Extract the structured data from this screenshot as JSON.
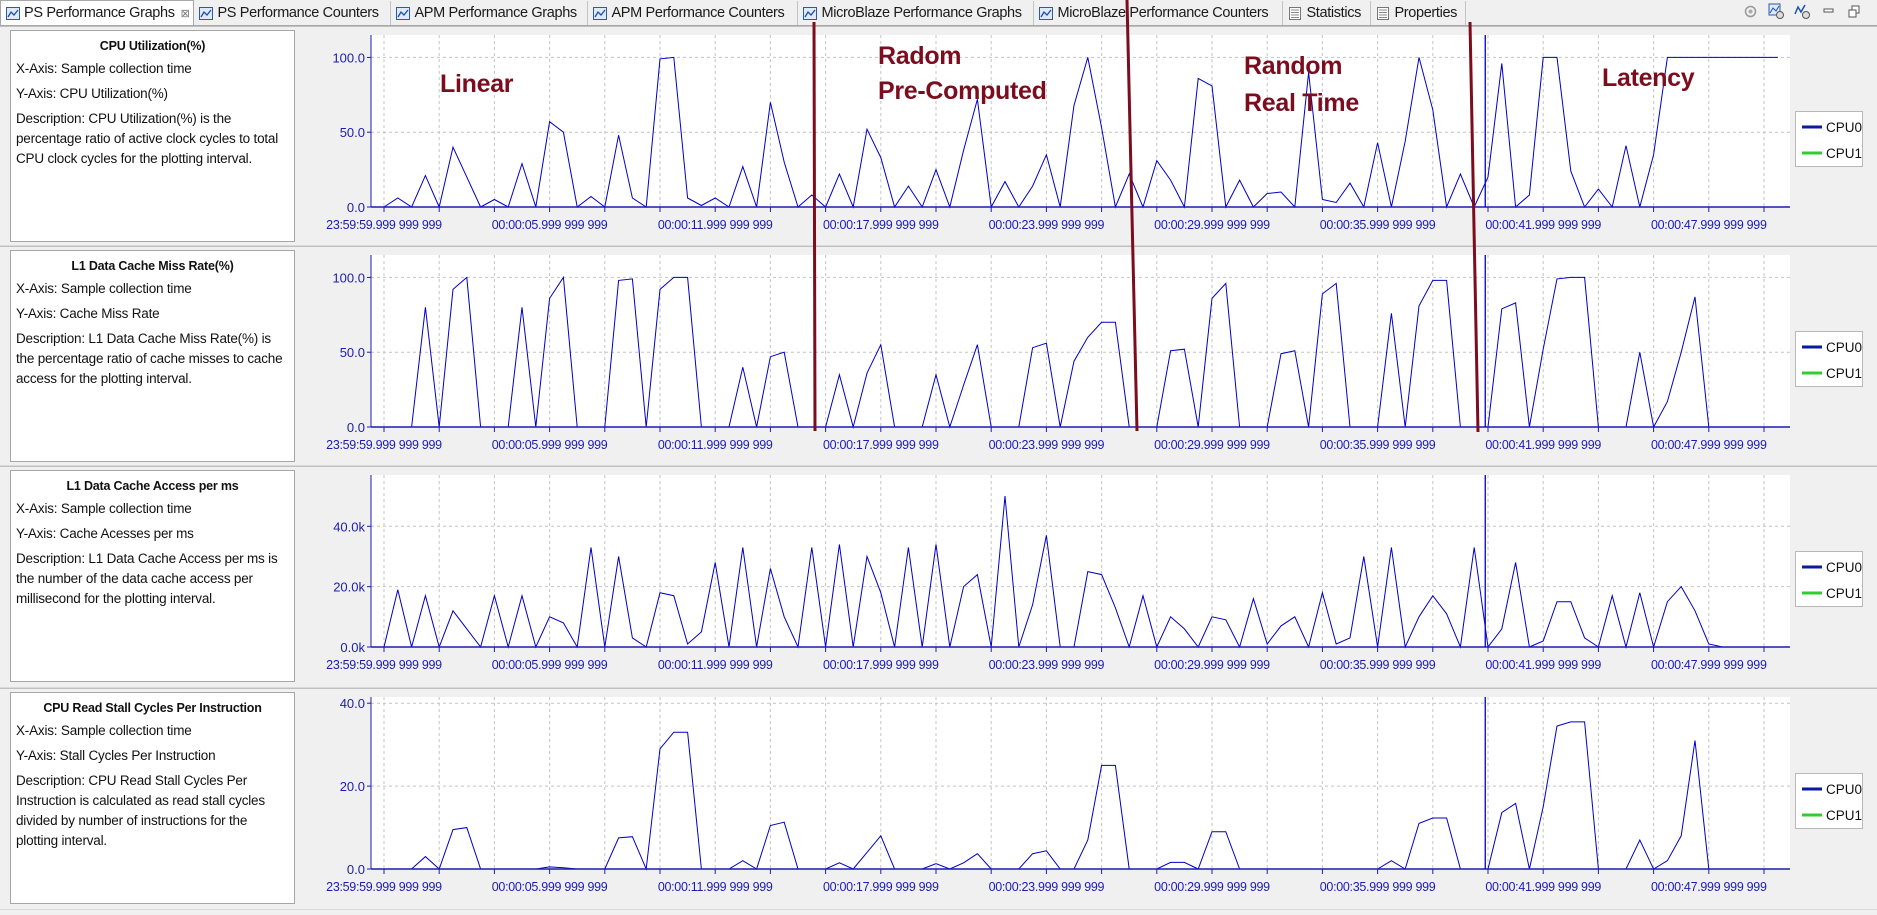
{
  "tabs": [
    {
      "label": "PS Performance Graphs",
      "icon": "chart-icon",
      "active": true,
      "closable": true
    },
    {
      "label": "PS Performance Counters",
      "icon": "chart-icon"
    },
    {
      "label": "APM Performance Graphs",
      "icon": "chart-icon"
    },
    {
      "label": "APM Performance Counters",
      "icon": "chart-icon"
    },
    {
      "label": "MicroBlaze Performance Graphs",
      "icon": "chart-icon"
    },
    {
      "label": "MicroBlaze Performance Counters",
      "icon": "chart-icon"
    },
    {
      "label": "Statistics",
      "icon": "table-icon"
    },
    {
      "label": "Properties",
      "icon": "table-icon"
    }
  ],
  "close_glyph": "⊠",
  "toolbar_icons": [
    "view-icon",
    "graph-settings-icon",
    "counter-settings-icon",
    "minimize-icon",
    "maximize-icon"
  ],
  "colors": {
    "cpu0": "#0000c8",
    "cpu1": "#33cc33",
    "annotation": "#7b0d1e",
    "axis_text": "#1c1cb4"
  },
  "annotations": {
    "linear": "Linear",
    "random_pre_1": "Radom",
    "random_pre_2": "Pre-Computed",
    "random_rt_1": "Random",
    "random_rt_2": "Real Time",
    "latency": "Latency"
  },
  "panels": [
    {
      "title": "CPU Utilization(%)",
      "xaxis": "X-Axis: Sample collection time",
      "yaxis": "Y-Axis: CPU Utilization(%)",
      "description": "Description: CPU Utilization(%) is the percentage ratio of active clock cycles to total CPU clock cycles for the plotting interval."
    },
    {
      "title": "L1 Data Cache Miss Rate(%)",
      "xaxis": "X-Axis: Sample collection time",
      "yaxis": "Y-Axis: Cache Miss Rate",
      "description": "Description: L1 Data Cache Miss Rate(%) is the percentage ratio of cache misses to cache access for the plotting interval."
    },
    {
      "title": "L1 Data Cache Access per ms",
      "xaxis": "X-Axis: Sample collection time",
      "yaxis": "Y-Axis: Cache Acesses per ms",
      "description": "Description: L1 Data Cache Access per ms is the number of the data cache access per millisecond for the plotting interval."
    },
    {
      "title": "CPU Read Stall Cycles Per Instruction",
      "xaxis": "X-Axis: Sample collection time",
      "yaxis": "Y-Axis: Stall Cycles Per Instruction",
      "description": "Description: CPU Read Stall Cycles Per Instruction is calculated as read stall cycles divided by number of instructions for the plotting interval."
    }
  ],
  "chart_data": [
    {
      "type": "line",
      "title": "CPU Utilization(%)",
      "xlabel": "Sample collection time",
      "ylabel": "CPU Utilization(%)",
      "x_start_s": 0,
      "sample_interval_s": 0.5,
      "xlim": [
        -0.5,
        51.1
      ],
      "ylim": [
        0,
        115
      ],
      "yticks": [
        0,
        50,
        100
      ],
      "ytick_labels": [
        "0.0",
        "50.0",
        "100.0"
      ],
      "marker_x_s": 39.9,
      "grid": true,
      "legend": "right",
      "series": [
        {
          "name": "CPU0",
          "values": [
            0,
            6,
            0,
            21,
            0,
            40,
            20,
            0,
            5,
            0,
            29,
            0,
            57,
            50,
            0,
            7,
            0,
            48,
            6,
            0,
            99,
            100,
            6,
            1,
            6,
            0,
            27,
            0,
            70,
            30,
            0,
            8,
            0,
            22,
            0,
            52,
            33,
            0,
            14,
            0,
            25,
            0,
            38,
            72,
            0,
            17,
            0,
            14,
            35,
            0,
            68,
            100,
            53,
            0,
            22,
            0,
            31,
            18,
            0,
            86,
            81,
            0,
            18,
            0,
            9,
            10,
            0,
            90,
            5,
            3,
            16,
            0,
            43,
            0,
            44,
            100,
            65,
            0,
            22,
            0,
            20,
            96,
            0,
            8,
            100,
            100,
            24,
            0,
            12,
            0,
            41,
            0,
            35,
            100,
            100,
            100,
            100,
            100,
            100,
            100,
            100,
            100
          ]
        },
        {
          "name": "CPU1",
          "constant": 0
        }
      ]
    },
    {
      "type": "line",
      "title": "L1 Data Cache Miss Rate(%)",
      "xlabel": "Sample collection time",
      "ylabel": "Cache Miss Rate",
      "x_start_s": 0,
      "sample_interval_s": 0.5,
      "xlim": [
        -0.5,
        51.1
      ],
      "ylim": [
        0,
        115
      ],
      "yticks": [
        0,
        50,
        100
      ],
      "ytick_labels": [
        "0.0",
        "50.0",
        "100.0"
      ],
      "marker_x_s": 39.9,
      "grid": true,
      "legend": "right",
      "series": [
        {
          "name": "CPU0",
          "values": [
            0,
            0,
            0,
            80,
            0,
            92,
            100,
            0,
            0,
            0,
            80,
            0,
            86,
            100,
            0,
            0,
            0,
            98,
            99,
            0,
            92,
            100,
            100,
            0,
            0,
            0,
            40,
            0,
            47,
            50,
            0,
            0,
            0,
            35,
            0,
            36,
            55,
            0,
            0,
            0,
            35,
            0,
            28,
            55,
            0,
            0,
            0,
            53,
            56,
            0,
            44,
            60,
            70,
            70,
            0,
            0,
            0,
            51,
            52,
            0,
            86,
            96,
            0,
            0,
            0,
            49,
            51,
            0,
            89,
            96,
            0,
            0,
            0,
            76,
            0,
            81,
            98,
            98,
            0,
            0,
            0,
            79,
            83,
            0,
            52,
            99,
            100,
            100,
            0,
            0,
            0,
            50,
            0,
            17,
            50,
            87,
            0,
            0
          ]
        },
        {
          "name": "CPU1",
          "constant": 0
        }
      ]
    },
    {
      "type": "line",
      "title": "L1 Data Cache Access per ms",
      "xlabel": "Sample collection time",
      "ylabel": "Cache Acesses per ms (k)",
      "x_start_s": 0,
      "sample_interval_s": 0.5,
      "xlim": [
        -0.5,
        51.1
      ],
      "ylim": [
        0,
        57
      ],
      "yticks": [
        0,
        20,
        40
      ],
      "ytick_labels": [
        "0.0k",
        "20.0k",
        "40.0k"
      ],
      "marker_x_s": 39.9,
      "grid": true,
      "legend": "right",
      "series": [
        {
          "name": "CPU0",
          "values": [
            0,
            19,
            0,
            17,
            0,
            12,
            6,
            0,
            17,
            0,
            17,
            0,
            10,
            8,
            0,
            33,
            0,
            30,
            3,
            0,
            18,
            17,
            1,
            5,
            28,
            0,
            33,
            0,
            26,
            10,
            0,
            33,
            0,
            34,
            0,
            30,
            18,
            0,
            33,
            0,
            34,
            0,
            20,
            24,
            0,
            50,
            0,
            14,
            37,
            0,
            0,
            25,
            24,
            13,
            0,
            17,
            0,
            10,
            6,
            0,
            10,
            9,
            0,
            16,
            1,
            7,
            10,
            0,
            18,
            1,
            3,
            30,
            0,
            33,
            0,
            10,
            17,
            11,
            0,
            33,
            0,
            6,
            28,
            0,
            2,
            15,
            15,
            3,
            0,
            17,
            0,
            18,
            0,
            15,
            20,
            12,
            1,
            0
          ]
        },
        {
          "name": "CPU1",
          "constant": 0
        }
      ]
    },
    {
      "type": "line",
      "title": "CPU Read Stall Cycles Per Instruction",
      "xlabel": "Sample collection time",
      "ylabel": "Stall Cycles Per Instruction",
      "x_start_s": 0,
      "sample_interval_s": 0.5,
      "xlim": [
        -0.5,
        51.1
      ],
      "ylim": [
        0,
        41.5
      ],
      "yticks": [
        0,
        20,
        40
      ],
      "ytick_labels": [
        "0.0",
        "20.0",
        "40.0"
      ],
      "marker_x_s": 39.9,
      "grid": true,
      "legend": "right",
      "series": [
        {
          "name": "CPU0",
          "values": [
            0,
            0,
            0,
            3,
            0,
            9.5,
            10,
            0,
            0,
            0,
            0,
            0,
            0.5,
            0.3,
            0,
            0,
            0,
            7.5,
            7.8,
            0,
            29,
            33,
            33,
            0,
            0,
            0,
            2,
            0,
            10.5,
            11.3,
            0,
            0,
            0,
            1.5,
            0,
            4,
            8,
            0,
            0,
            0,
            1.3,
            0,
            1.5,
            3.7,
            0,
            0,
            0,
            3.7,
            4.4,
            0,
            0,
            7,
            25,
            25,
            0,
            0,
            0,
            1.6,
            1.6,
            0,
            9,
            9,
            0,
            0,
            0,
            0,
            0,
            0,
            0,
            0,
            0,
            0,
            0,
            2,
            0,
            11,
            12.3,
            12.3,
            0,
            0,
            0,
            13.6,
            15.8,
            0,
            15,
            34.5,
            35.5,
            35.5,
            0,
            0,
            0,
            7,
            0,
            2,
            8,
            31,
            0,
            0
          ]
        },
        {
          "name": "CPU1",
          "constant": 0
        }
      ]
    }
  ],
  "x_tick_labels": [
    "23:59:59.999 999 999",
    "00:00:05.999 999 999",
    "00:00:11.999 999 999",
    "00:00:17.999 999 999",
    "00:00:23.999 999 999",
    "00:00:29.999 999 999",
    "00:00:35.999 999 999",
    "00:00:41.999 999 999",
    "00:00:47.999 999 999"
  ],
  "x_tick_label_times_s": [
    0,
    6,
    12,
    18,
    24,
    30,
    36,
    42,
    48
  ]
}
